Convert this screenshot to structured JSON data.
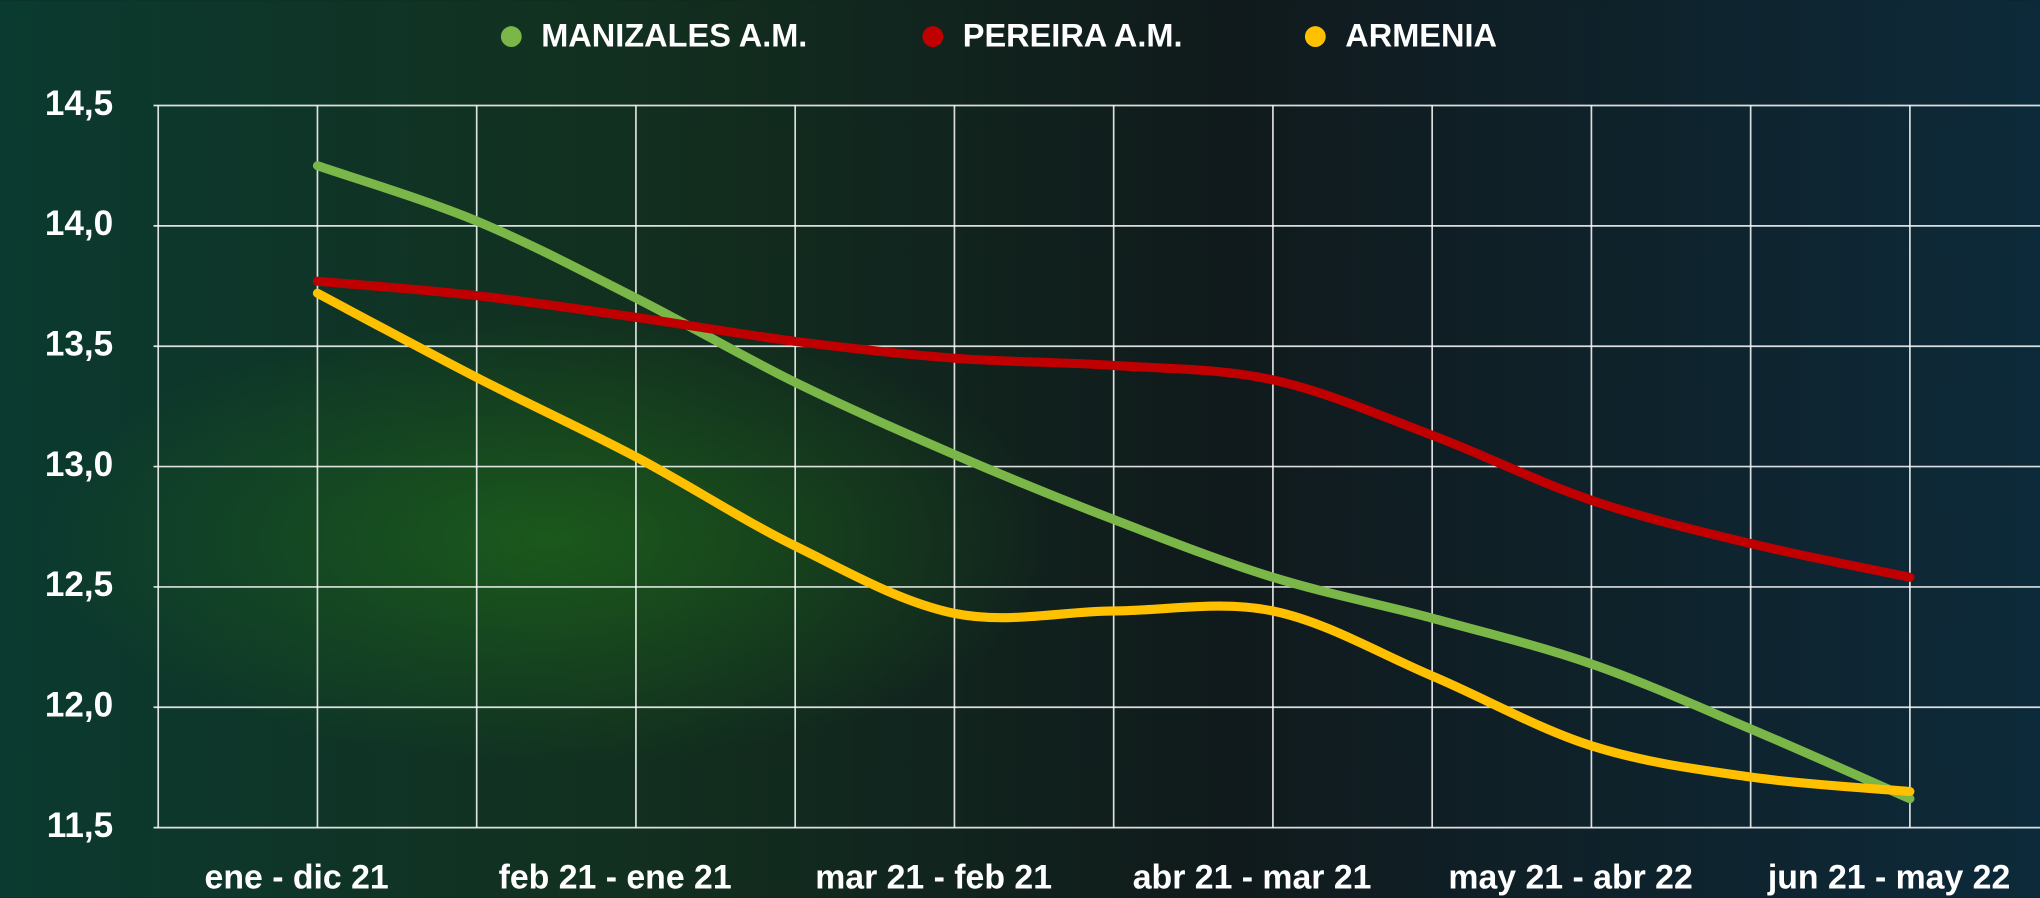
{
  "chart_data": {
    "type": "line",
    "categories": [
      "ene - dic 21",
      null,
      "feb 21 - ene 21",
      null,
      "mar 21 - feb 21",
      null,
      "abr 21 - mar 21",
      null,
      "may 21 - abr 22",
      null,
      "jun 21 - may 22"
    ],
    "series": [
      {
        "name": "MANIZALES A.M.",
        "color": "#7ab648",
        "values": [
          14.25,
          14.02,
          13.7,
          13.35,
          13.05,
          12.78,
          12.54,
          12.37,
          12.18,
          11.91,
          11.62
        ]
      },
      {
        "name": "PEREIRA A.M.",
        "color": "#c00000",
        "values": [
          13.77,
          13.71,
          13.62,
          13.52,
          13.45,
          13.42,
          13.36,
          13.13,
          12.86,
          12.68,
          12.54
        ]
      },
      {
        "name": "ARMENIA",
        "color": "#ffc000",
        "values": [
          13.72,
          13.37,
          13.04,
          12.67,
          12.39,
          12.4,
          12.4,
          12.13,
          11.84,
          11.71,
          11.65
        ]
      }
    ],
    "ylim": [
      11.5,
      14.5
    ],
    "yticks": [
      {
        "value": 11.5,
        "label": "11,5"
      },
      {
        "value": 12.0,
        "label": "12,0"
      },
      {
        "value": 12.5,
        "label": "12,5"
      },
      {
        "value": 13.0,
        "label": "13,0"
      },
      {
        "value": 13.5,
        "label": "13,5"
      },
      {
        "value": 14.0,
        "label": "14,0"
      },
      {
        "value": 14.5,
        "label": "14,5"
      }
    ],
    "grid": true
  }
}
